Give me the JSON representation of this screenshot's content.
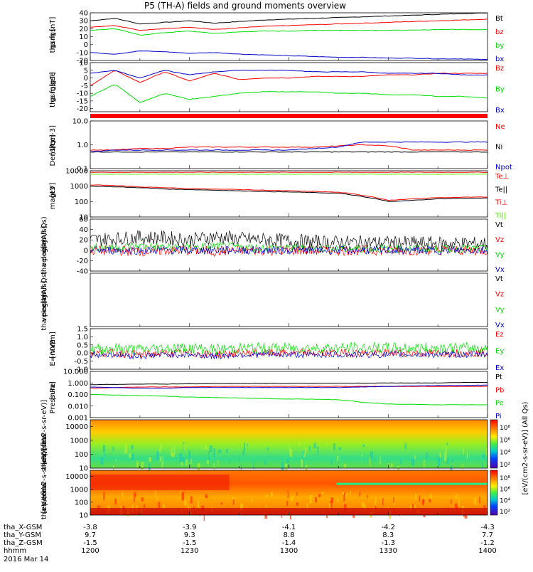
{
  "title": "P5 (TH-A) fields and ground moments overview",
  "footer": {
    "rows": [
      {
        "label": "tha_X-GSM",
        "values": [
          "-3.8",
          "-3.9",
          "-4.1",
          "-4.2",
          "-4.3"
        ]
      },
      {
        "label": "tha_Y-GSM",
        "values": [
          "9.7",
          "9.3",
          "8.8",
          "8.3",
          "7.7"
        ]
      },
      {
        "label": "tha_Z-GSM",
        "values": [
          "-1.5",
          "-1.5",
          "-1.4",
          "-1.3",
          "-1.2"
        ]
      },
      {
        "label": "hhmm",
        "values": [
          "1200",
          "1230",
          "1300",
          "1330",
          "1400"
        ]
      }
    ],
    "date": "2016 Mar 14"
  },
  "colorbar_label": "[eV/(cm2-s-sr-eV)]  (All Qs)",
  "colors": {
    "black": "#000000",
    "red": "#ff0000",
    "green": "#00dd00",
    "blue": "#0000cc",
    "lime": "#55ee00"
  },
  "chart_data": [
    {
      "type": "line",
      "ylabel": "tha fgs gsm [nT]",
      "ylim": [
        -20,
        40
      ],
      "yticks": [
        "40",
        "30",
        "20",
        "10",
        "0",
        "-10",
        "-20"
      ],
      "ytick_values": [
        40,
        30,
        20,
        10,
        0,
        -10,
        -20
      ],
      "x": "hhmm 1200-1400",
      "series": [
        {
          "name": "Bt",
          "color": "black",
          "values": [
            30,
            33,
            26,
            28,
            30,
            27,
            29,
            31,
            32,
            33,
            34,
            35,
            36,
            37,
            38,
            39,
            40
          ]
        },
        {
          "name": "bz",
          "color": "red",
          "values": [
            22,
            24,
            18,
            20,
            22,
            19,
            21,
            23,
            24,
            25,
            26,
            27,
            28,
            29,
            30,
            31,
            32
          ]
        },
        {
          "name": "by",
          "color": "green",
          "values": [
            18,
            20,
            12,
            15,
            17,
            14,
            16,
            17,
            17,
            18,
            18,
            18,
            18,
            18,
            19,
            19,
            19
          ]
        },
        {
          "name": "bx",
          "color": "blue",
          "values": [
            -10,
            -12,
            -8,
            -9,
            -11,
            -10,
            -12,
            -13,
            -14,
            -15,
            -16,
            -16,
            -17,
            -17,
            -18,
            -18,
            -19
          ]
        }
      ]
    },
    {
      "type": "line",
      "ylabel": "tha fgs gsm gse [nT]",
      "ylim": [
        -22,
        10
      ],
      "yticks": [
        "10",
        "5",
        "0",
        "-5",
        "-10",
        "-15",
        "-20"
      ],
      "ytick_values": [
        10,
        5,
        0,
        -5,
        -10,
        -15,
        -20
      ],
      "series": [
        {
          "name": "Bz",
          "color": "red",
          "values": [
            -5,
            5,
            -3,
            4,
            -2,
            3,
            -1,
            0,
            0,
            1,
            1,
            1,
            2,
            2,
            3,
            3,
            3
          ]
        },
        {
          "name": "By",
          "color": "green",
          "values": [
            -12,
            -4,
            -16,
            -10,
            -14,
            -12,
            -10,
            -9,
            -9,
            -9,
            -10,
            -10,
            -11,
            -11,
            -12,
            -12,
            -13
          ]
        },
        {
          "name": "Bx",
          "color": "blue",
          "values": [
            3,
            5,
            0,
            5,
            2,
            4,
            5,
            5,
            5,
            4,
            4,
            4,
            3,
            3,
            3,
            2,
            2
          ]
        }
      ]
    },
    {
      "type": "line",
      "ylabel": "Density [1/cc] [cm-3]",
      "yscale": "log",
      "ylim": [
        0.1,
        10
      ],
      "yticks": [
        "10.0",
        "1.0",
        "0.1"
      ],
      "ytick_values": [
        10,
        1,
        0.1
      ],
      "series": [
        {
          "name": "Ne",
          "color": "red",
          "values": [
            0.6,
            0.6,
            0.7,
            0.7,
            0.8,
            0.8,
            0.8,
            0.8,
            0.8,
            0.8,
            0.9,
            1.0,
            0.9,
            0.6,
            0.6,
            0.6,
            0.6
          ]
        },
        {
          "name": "Ni",
          "color": "black",
          "values": [
            0.5,
            0.5,
            0.5,
            0.5,
            0.5,
            0.5,
            0.5,
            0.5,
            0.5,
            0.5,
            0.5,
            0.5,
            0.5,
            0.5,
            0.5,
            0.5,
            0.5
          ]
        },
        {
          "name": "Npot",
          "color": "blue",
          "values": [
            0.5,
            0.6,
            0.6,
            0.6,
            0.6,
            0.6,
            0.6,
            0.6,
            0.6,
            0.7,
            0.8,
            1.3,
            1.3,
            1.3,
            1.3,
            1.3,
            1.3
          ]
        }
      ]
    },
    {
      "type": "line",
      "ylabel": "magt3 [eV]",
      "yscale": "log",
      "ylim": [
        10,
        10000
      ],
      "yticks": [
        "10000",
        "1000",
        "100",
        "10"
      ],
      "ytick_values": [
        10000,
        1000,
        100,
        10
      ],
      "series": [
        {
          "name": "Te⊥",
          "color": "red",
          "values": [
            8000,
            8000,
            8000,
            8000,
            8000,
            8000,
            8000,
            8000,
            8000,
            8000,
            8000,
            8000,
            8000,
            8000,
            8000,
            8000,
            8000
          ]
        },
        {
          "name": "Te||",
          "color": "black",
          "values": [
            1000,
            900,
            800,
            650,
            600,
            550,
            500,
            450,
            420,
            380,
            350,
            200,
            100,
            120,
            150,
            160,
            170
          ]
        },
        {
          "name": "Ti⊥",
          "color": "red",
          "values": [
            1200,
            1100,
            900,
            800,
            700,
            650,
            600,
            550,
            500,
            450,
            400,
            250,
            120,
            150,
            180,
            190,
            200
          ]
        },
        {
          "name": "Ti||",
          "color": "lime",
          "values": [
            6000,
            6000,
            6000,
            6000,
            6000,
            6000,
            6000,
            6000,
            6000,
            6000,
            6000,
            6000,
            6000,
            6000,
            6000,
            6000,
            6000
          ]
        }
      ]
    },
    {
      "type": "line",
      "ylabel": "tha peir velocity gsm [km/s] (All Qs)",
      "ylim": [
        -40,
        60
      ],
      "yticks": [
        "60",
        "40",
        "20",
        "0",
        "-20",
        "-40"
      ],
      "ytick_values": [
        60,
        40,
        20,
        0,
        -20,
        -40
      ],
      "noisy": true,
      "series": [
        {
          "name": "Vt",
          "color": "black",
          "values": [
            20,
            22,
            25,
            24,
            20,
            26,
            22,
            20,
            18,
            16,
            15,
            15,
            14,
            14,
            13,
            13,
            12
          ],
          "amp": 14
        },
        {
          "name": "Vz",
          "color": "red",
          "values": [
            0,
            0,
            -2,
            0,
            0,
            -2,
            0,
            0,
            0,
            0,
            0,
            0,
            0,
            0,
            0,
            0,
            0
          ],
          "amp": 10
        },
        {
          "name": "Vy",
          "color": "green",
          "values": [
            5,
            6,
            8,
            6,
            5,
            8,
            6,
            5,
            4,
            4,
            3,
            3,
            3,
            3,
            3,
            3,
            3
          ],
          "amp": 8
        },
        {
          "name": "Vx",
          "color": "blue",
          "values": [
            0,
            0,
            0,
            0,
            0,
            0,
            0,
            0,
            0,
            0,
            0,
            0,
            0,
            0,
            0,
            0,
            0
          ],
          "amp": 8
        }
      ]
    },
    {
      "type": "line",
      "ylabel": "tha peer velocity gsm [km/s] (All Qs)",
      "ylim": [
        -40,
        60
      ],
      "yticks": [],
      "ytick_values": [],
      "series": [
        {
          "name": "Vt",
          "color": "black",
          "values": []
        },
        {
          "name": "Vz",
          "color": "red",
          "values": []
        },
        {
          "name": "Vy",
          "color": "green",
          "values": []
        },
        {
          "name": "Vx",
          "color": "blue",
          "values": []
        }
      ]
    },
    {
      "type": "line",
      "ylabel": "E=-VxB [mV/m]",
      "ylim": [
        -1.0,
        1.5
      ],
      "yticks": [
        "1.5",
        "1.0",
        "0.5",
        "0.0",
        "-0.5",
        "-1.0"
      ],
      "ytick_values": [
        1.5,
        1.0,
        0.5,
        0.0,
        -0.5,
        -1.0
      ],
      "noisy": true,
      "series": [
        {
          "name": "Ez",
          "color": "red",
          "values": [
            0,
            0,
            -0.1,
            0,
            0,
            -0.1,
            0,
            0,
            0,
            0,
            0,
            0,
            0,
            0,
            0,
            0,
            0
          ],
          "amp": 0.25
        },
        {
          "name": "Ey",
          "color": "green",
          "values": [
            0.2,
            0.3,
            0.2,
            0.3,
            0.3,
            0.2,
            0.3,
            0.3,
            0.3,
            0.3,
            0.3,
            0.3,
            0.3,
            0.3,
            0.3,
            0.3,
            0.3
          ],
          "amp": 0.35
        },
        {
          "name": "Ex",
          "color": "blue",
          "values": [
            -0.1,
            -0.1,
            -0.2,
            -0.1,
            -0.1,
            -0.2,
            -0.1,
            -0.1,
            -0.1,
            -0.1,
            -0.1,
            -0.1,
            -0.1,
            -0.1,
            -0.1,
            -0.1,
            -0.1
          ],
          "amp": 0.2
        }
      ]
    },
    {
      "type": "line",
      "ylabel": "Pressure [nPa]",
      "yscale": "log",
      "ylim": [
        0.001,
        10
      ],
      "yticks": [
        "10.000",
        "1.000",
        "0.100",
        "0.010",
        "0.001"
      ],
      "ytick_values": [
        10,
        1,
        0.1,
        0.01,
        0.001
      ],
      "series": [
        {
          "name": "Pt",
          "color": "black",
          "values": [
            0.7,
            0.75,
            0.8,
            0.8,
            0.85,
            0.85,
            0.9,
            0.9,
            0.9,
            0.9,
            0.95,
            0.95,
            1.0,
            1.0,
            1.0,
            1.1,
            1.1
          ]
        },
        {
          "name": "Pb",
          "color": "red",
          "values": [
            0.35,
            0.4,
            0.45,
            0.45,
            0.45,
            0.5,
            0.5,
            0.5,
            0.5,
            0.5,
            0.5,
            0.5,
            0.5,
            0.5,
            0.5,
            0.5,
            0.5
          ]
        },
        {
          "name": "Pe",
          "color": "green",
          "values": [
            0.1,
            0.09,
            0.08,
            0.07,
            0.06,
            0.055,
            0.05,
            0.045,
            0.04,
            0.04,
            0.035,
            0.02,
            0.015,
            0.014,
            0.013,
            0.013,
            0.013
          ]
        },
        {
          "name": "Pi",
          "color": "blue",
          "values": [
            0.45,
            0.4,
            0.35,
            0.35,
            0.4,
            0.4,
            0.4,
            0.4,
            0.4,
            0.4,
            0.4,
            0.45,
            0.5,
            0.55,
            0.6,
            0.6,
            0.65
          ]
        }
      ]
    },
    {
      "type": "heatmap",
      "ylabel": "tha peir en eflux eV [eV/(cm2-s-sr-eV)]",
      "yscale": "log",
      "ylim": [
        10,
        30000
      ],
      "yticks": [
        "10000",
        "1000",
        "100",
        "10"
      ],
      "ytick_values": [
        10000,
        1000,
        100,
        10
      ],
      "colorbar_ticks": [
        "10⁸",
        "10⁶",
        "10⁴",
        "10²"
      ]
    },
    {
      "type": "heatmap",
      "ylabel": "tha peer en eflux eV [eV/(cm2-s-sr-eV)]",
      "yscale": "log",
      "ylim": [
        10,
        30000
      ],
      "yticks": [
        "10000",
        "1000",
        "100",
        "10"
      ],
      "ytick_values": [
        10000,
        1000,
        100,
        10
      ],
      "colorbar_ticks": [
        "10⁸",
        "10⁶",
        "10⁴",
        "10²"
      ]
    }
  ]
}
